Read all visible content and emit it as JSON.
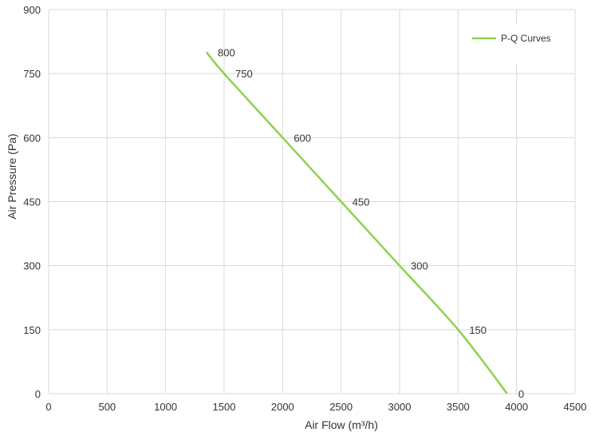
{
  "chart_data": {
    "type": "line",
    "xlabel": "Air Flow  (m³/h)",
    "ylabel": "Air Pressure  (Pa)",
    "xlim": [
      0,
      4500
    ],
    "ylim": [
      0,
      900
    ],
    "xticks": [
      0,
      500,
      1000,
      1500,
      2000,
      2500,
      3000,
      3500,
      4000,
      4500
    ],
    "yticks": [
      0,
      150,
      300,
      450,
      600,
      750,
      900
    ],
    "grid": true,
    "legend_position": "top-right",
    "colors": {
      "series": "#8fd14f",
      "grid": "#d9d9d9",
      "text": "#333333"
    },
    "series": [
      {
        "name": "P-Q Curves",
        "x": [
          1350,
          1500,
          2000,
          2500,
          3000,
          3500,
          3920
        ],
        "y": [
          800,
          750,
          600,
          450,
          300,
          150,
          0
        ],
        "labels": [
          "800",
          "750",
          "600",
          "450",
          "300",
          "150",
          "0"
        ]
      }
    ]
  }
}
